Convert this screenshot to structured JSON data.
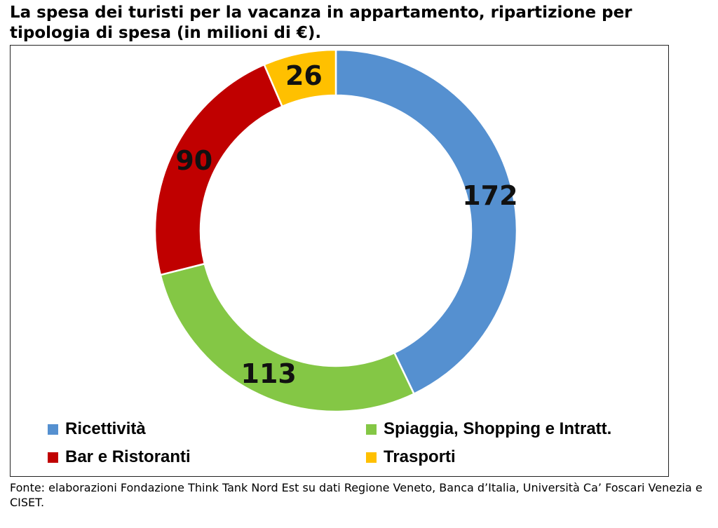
{
  "title": "La spesa dei turisti per la vacanza in appartamento, ripartizione per tipologia di spesa (in milioni di €).",
  "source": "Fonte: elaborazioni Fondazione Think Tank Nord Est su dati Regione Veneto, Banca d’Italia, Università Ca’ Foscari Venezia e CISET.",
  "colors": {
    "ricettivita": "#5590d0",
    "spiaggia": "#84c745",
    "bar": "#c00000",
    "trasporti": "#ffc000"
  },
  "chart_data": {
    "type": "donut",
    "title": "",
    "categories": [
      "Ricettività",
      "Spiaggia, Shopping e Intratt.",
      "Bar e Ristoranti",
      "Trasporti"
    ],
    "values": [
      172,
      113,
      90,
      26
    ],
    "series": [
      {
        "name": "Ricettività",
        "value": 172,
        "color": "#5590d0"
      },
      {
        "name": "Spiaggia, Shopping e Intratt.",
        "value": 113,
        "color": "#84c745"
      },
      {
        "name": "Bar e Ristoranti",
        "value": 90,
        "color": "#c00000"
      },
      {
        "name": "Trasporti",
        "value": 26,
        "color": "#ffc000"
      }
    ],
    "data_labels": [
      "172",
      "113",
      "90",
      "26"
    ],
    "legend": "bottom"
  }
}
